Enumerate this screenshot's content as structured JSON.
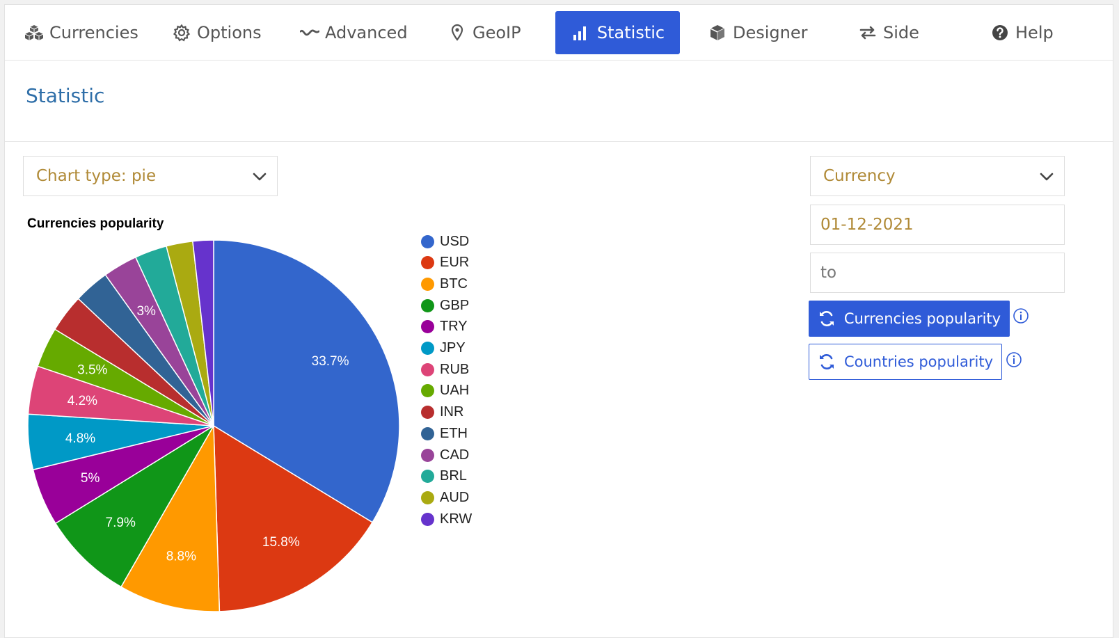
{
  "nav": {
    "tabs": [
      {
        "label": "Currencies",
        "icon": "cubes-icon"
      },
      {
        "label": "Options",
        "icon": "gear-icon"
      },
      {
        "label": "Advanced",
        "icon": "wave-icon"
      },
      {
        "label": "GeoIP",
        "icon": "map-pin-icon"
      },
      {
        "label": "Statistic",
        "icon": "bar-chart-icon",
        "active": true
      },
      {
        "label": "Designer",
        "icon": "cube-icon"
      },
      {
        "label": "Side",
        "icon": "swap-arrows-icon"
      },
      {
        "label": "Help",
        "icon": "question-circle-icon"
      }
    ]
  },
  "page": {
    "title": "Statistic"
  },
  "controls": {
    "chart_type_label": "Chart type: pie",
    "filter_label": "Currency",
    "date_from": "01-12-2021",
    "date_to_placeholder": "to",
    "currencies_button": "Currencies popularity",
    "countries_button": "Countries popularity"
  },
  "colors": {
    "accent": "#2f5bd8",
    "title": "#2e6ea8",
    "field_text": "#b08a37"
  },
  "chart_data": {
    "type": "pie",
    "title": "Currencies popularity",
    "legend_position": "right",
    "slices": [
      {
        "name": "USD",
        "value": 33.7,
        "label": "33.7%",
        "color": "#3366cc"
      },
      {
        "name": "EUR",
        "value": 15.8,
        "label": "15.8%",
        "color": "#dc3912"
      },
      {
        "name": "BTC",
        "value": 8.8,
        "label": "8.8%",
        "color": "#ff9900"
      },
      {
        "name": "GBP",
        "value": 7.9,
        "label": "7.9%",
        "color": "#109618"
      },
      {
        "name": "TRY",
        "value": 5.0,
        "label": "5%",
        "color": "#990099"
      },
      {
        "name": "JPY",
        "value": 4.8,
        "label": "4.8%",
        "color": "#0099c6"
      },
      {
        "name": "RUB",
        "value": 4.2,
        "label": "4.2%",
        "color": "#dd4477"
      },
      {
        "name": "UAH",
        "value": 3.5,
        "label": "3.5%",
        "color": "#66aa00"
      },
      {
        "name": "INR",
        "value": 3.3,
        "label": "",
        "color": "#b82e2e"
      },
      {
        "name": "ETH",
        "value": 3.1,
        "label": "",
        "color": "#316395"
      },
      {
        "name": "CAD",
        "value": 3.0,
        "label": "3%",
        "color": "#994499"
      },
      {
        "name": "BRL",
        "value": 2.8,
        "label": "",
        "color": "#22aa99"
      },
      {
        "name": "AUD",
        "value": 2.3,
        "label": "",
        "color": "#aaaa11"
      },
      {
        "name": "KRW",
        "value": 1.8,
        "label": "",
        "color": "#6633cc"
      }
    ]
  }
}
